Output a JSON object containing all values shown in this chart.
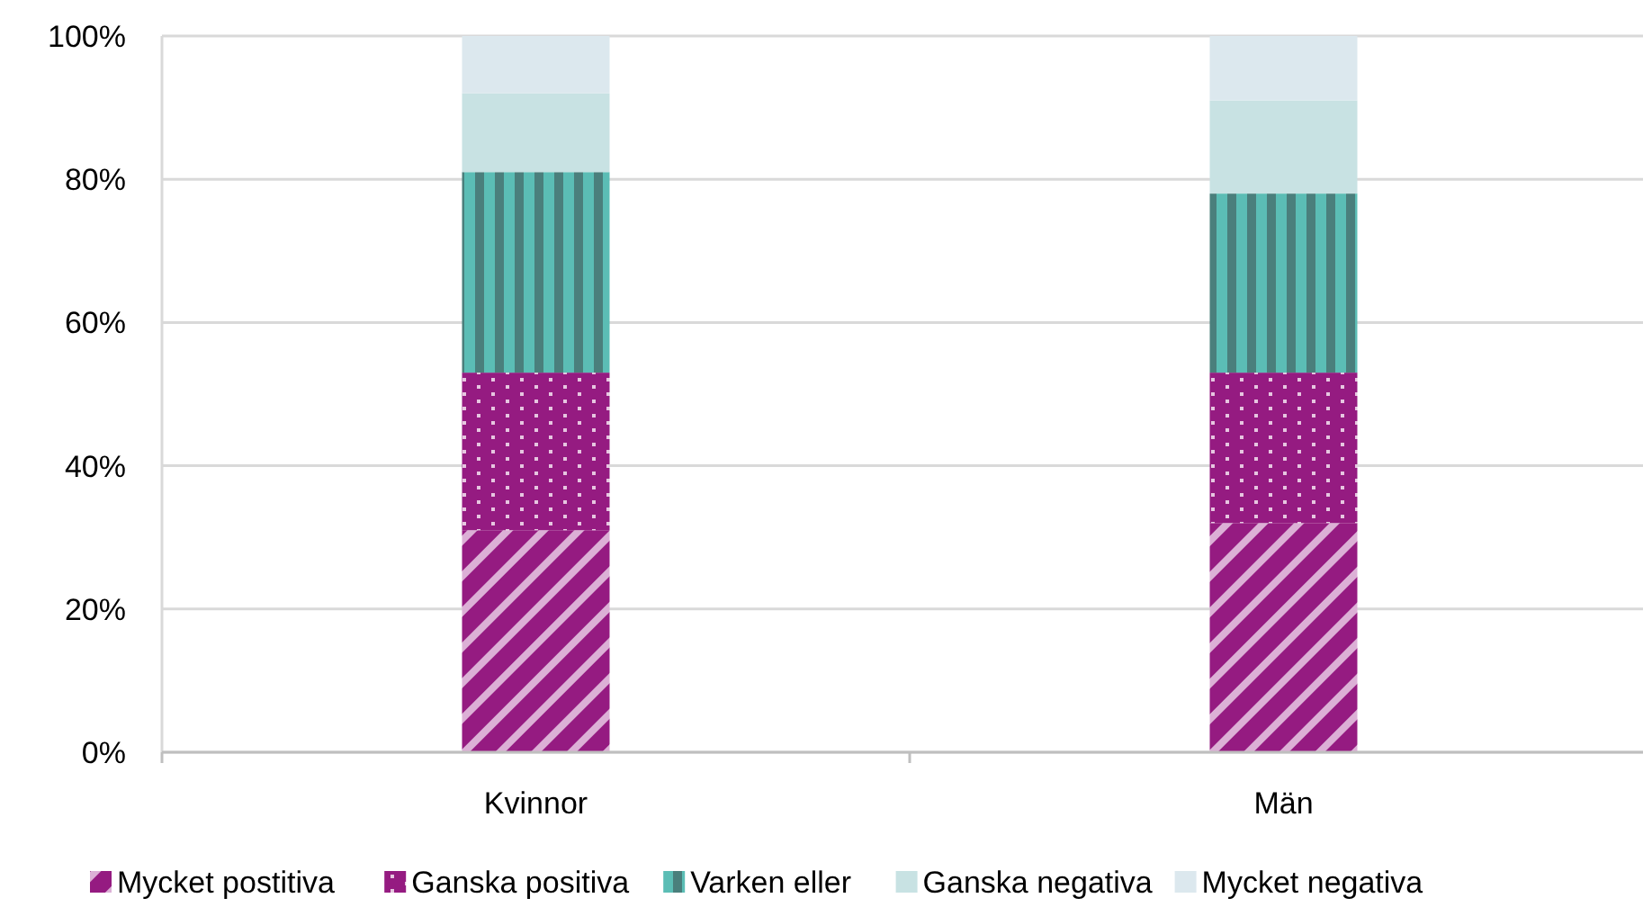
{
  "chart_data": {
    "type": "bar",
    "stacked": true,
    "categories": [
      "Kvinnor",
      "Män"
    ],
    "series": [
      {
        "name": "Mycket postitiva",
        "color": "#951b81",
        "values": [
          31,
          32
        ]
      },
      {
        "name": "Ganska positiva",
        "color": "#951b81",
        "values": [
          22,
          21
        ]
      },
      {
        "name": "Varken eller",
        "color": "#5bbdb5",
        "values": [
          28,
          25
        ]
      },
      {
        "name": "Ganska negativa",
        "color": "#c8e2e3",
        "values": [
          11,
          13
        ]
      },
      {
        "name": "Mycket negativa",
        "color": "#dce8ee",
        "values": [
          8,
          9
        ]
      }
    ],
    "ylim": [
      0,
      100
    ],
    "yticks": [
      {
        "value": 0,
        "label": "0%"
      },
      {
        "value": 20,
        "label": "20%"
      },
      {
        "value": 40,
        "label": "40%"
      },
      {
        "value": 60,
        "label": "60%"
      },
      {
        "value": 80,
        "label": "80%"
      },
      {
        "value": 100,
        "label": "100%"
      }
    ],
    "grid": "y",
    "legend": "bottom"
  }
}
